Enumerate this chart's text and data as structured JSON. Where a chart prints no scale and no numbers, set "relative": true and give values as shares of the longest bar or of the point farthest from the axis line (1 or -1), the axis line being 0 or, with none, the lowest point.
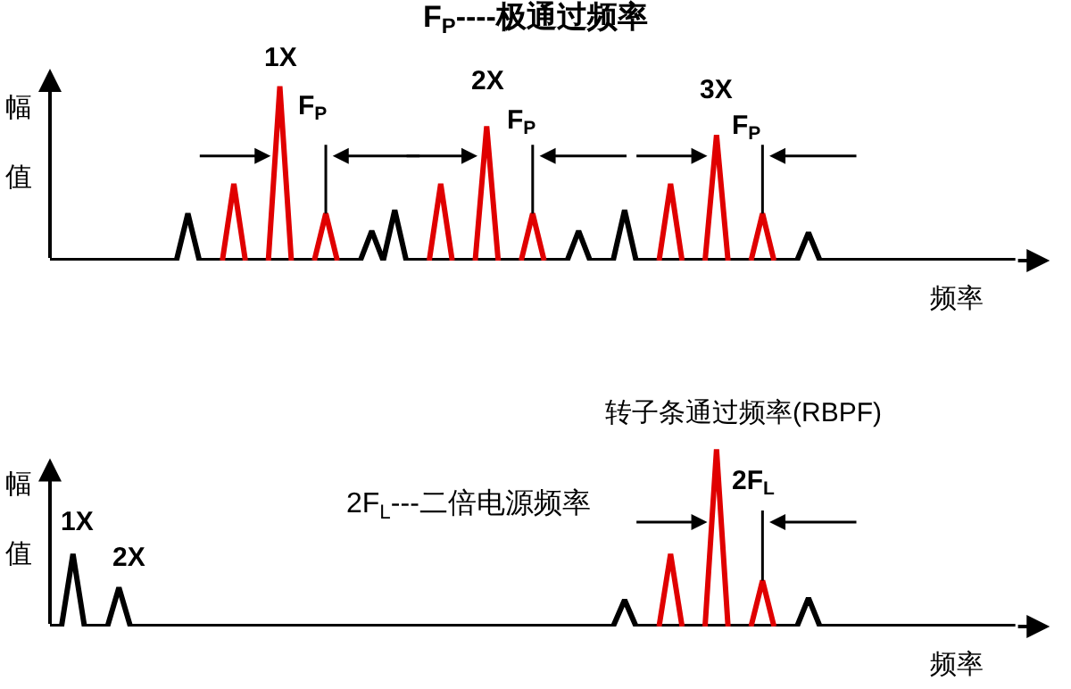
{
  "chart_data": [
    {
      "type": "line",
      "relative": true,
      "title": "F$_{P}$----极通过频率",
      "xlabel": "频率",
      "ylabel": "幅值",
      "grid": false,
      "categories": [
        null,
        null,
        null,
        null,
        null,
        null,
        null,
        null,
        null,
        null,
        null,
        null,
        null,
        null,
        null,
        null,
        null,
        null,
        null,
        null,
        null,
        null,
        null,
        null,
        null,
        null,
        null,
        null,
        null,
        null,
        null,
        null,
        null,
        null,
        null,
        null,
        null,
        null,
        null,
        null,
        null,
        null,
        null,
        null,
        null,
        null,
        null,
        null,
        null,
        null,
        null,
        null,
        null,
        null,
        null,
        null,
        null,
        null,
        null,
        null,
        null,
        null,
        null,
        null,
        null,
        null,
        null,
        null,
        null,
        null,
        null,
        null,
        null,
        null,
        null,
        null,
        null,
        null,
        null,
        null,
        null,
        null,
        null,
        null,
        null
      ],
      "series": [
        {
          "color": "#000000",
          "values": [
            0,
            0,
            0,
            0,
            0,
            0,
            0,
            0,
            0,
            0,
            0,
            0,
            0.27,
            0,
            0,
            null,
            null,
            null,
            0,
            null,
            null,
            null,
            0,
            null,
            null,
            null,
            0,
            0,
            0.17,
            0,
            0.29,
            0,
            0,
            null,
            null,
            null,
            0,
            null,
            null,
            null,
            0,
            null,
            null,
            null,
            0,
            0,
            0.17,
            0,
            0,
            0,
            0.29,
            0,
            0,
            null,
            null,
            null,
            0,
            null,
            null,
            null,
            0,
            null,
            null,
            null,
            0,
            0,
            0.16,
            0,
            0,
            0,
            0,
            0,
            0,
            0,
            0,
            0,
            0,
            0,
            0,
            0,
            0,
            0,
            0,
            0,
            0
          ]
        },
        {
          "color": "#e00000",
          "values": [
            null,
            null,
            null,
            null,
            null,
            null,
            null,
            null,
            null,
            null,
            null,
            null,
            null,
            null,
            null,
            0,
            0.44,
            0,
            null,
            0,
            1,
            0,
            null,
            0,
            0.27,
            0,
            null,
            null,
            null,
            null,
            null,
            null,
            null,
            0,
            0.44,
            0,
            null,
            0,
            0.77,
            0,
            null,
            0,
            0.27,
            0,
            null,
            null,
            null,
            null,
            null,
            null,
            null,
            null,
            null,
            0,
            0.44,
            0,
            null,
            0,
            0.72,
            0,
            null,
            0,
            0.27,
            0,
            null,
            null,
            null,
            null,
            null,
            null,
            null,
            null,
            null,
            null,
            null,
            null,
            null,
            null,
            null,
            null,
            null,
            null,
            null,
            null,
            null
          ]
        }
      ],
      "annotations": [
        "1X",
        "F$_{P}$",
        "2X",
        "F$_{P}$",
        "3X",
        "F$_{P}$"
      ]
    },
    {
      "type": "line",
      "relative": true,
      "xlabel": "频率",
      "ylabel": "幅值",
      "grid": false,
      "categories": [
        null,
        null,
        null,
        null,
        null,
        null,
        null,
        null,
        null,
        null,
        null,
        null,
        null,
        null,
        null,
        null,
        null,
        null,
        null,
        null,
        null,
        null,
        null,
        null,
        null,
        null,
        null,
        null,
        null,
        null,
        null,
        null,
        null,
        null,
        null,
        null,
        null,
        null,
        null,
        null,
        null,
        null,
        null,
        null,
        null,
        null,
        null,
        null,
        null,
        null,
        null,
        null,
        null,
        null,
        null,
        null,
        null,
        null,
        null,
        null,
        null,
        null,
        null,
        null,
        null,
        null,
        null,
        null,
        null,
        null,
        null,
        null,
        null,
        null,
        null,
        null,
        null,
        null,
        null,
        null,
        null,
        null,
        null,
        null,
        null
      ],
      "series": [
        {
          "color": "#000000",
          "values": [
            0,
            0,
            0.41,
            0,
            0,
            0,
            0.22,
            0,
            0,
            0,
            0,
            0,
            0,
            0,
            0,
            0,
            0,
            0,
            0,
            0,
            0,
            0,
            0,
            0,
            0,
            0,
            0,
            0,
            0,
            0,
            0,
            0,
            0,
            0,
            0,
            0,
            0,
            0,
            0,
            0,
            0,
            0,
            0,
            0,
            0,
            0,
            0,
            0,
            0,
            0,
            0.15,
            0,
            0,
            null,
            null,
            null,
            0,
            null,
            null,
            null,
            0,
            null,
            null,
            null,
            0,
            0,
            0.16,
            0,
            0,
            0,
            0,
            0,
            0,
            0,
            0,
            0,
            0,
            0,
            0,
            0,
            0,
            0,
            0,
            0,
            0
          ]
        },
        {
          "color": "#e00000",
          "values": [
            null,
            null,
            null,
            null,
            null,
            null,
            null,
            null,
            null,
            null,
            null,
            null,
            null,
            null,
            null,
            null,
            null,
            null,
            null,
            null,
            null,
            null,
            null,
            null,
            null,
            null,
            null,
            null,
            null,
            null,
            null,
            null,
            null,
            null,
            null,
            null,
            null,
            null,
            null,
            null,
            null,
            null,
            null,
            null,
            null,
            null,
            null,
            null,
            null,
            null,
            null,
            null,
            null,
            0,
            0.41,
            0,
            null,
            0,
            1,
            0,
            null,
            0,
            0.26,
            0,
            null,
            null,
            null,
            null,
            null,
            null,
            null,
            null,
            null,
            null,
            null,
            null,
            null,
            null,
            null,
            null,
            null,
            null,
            null,
            null,
            null
          ]
        }
      ],
      "annotations": [
        "1X",
        "2X",
        "2F$_{L}$---二倍电源频率",
        "转子条通过频率(RBPF)",
        "2F$_{L}$"
      ]
    }
  ]
}
